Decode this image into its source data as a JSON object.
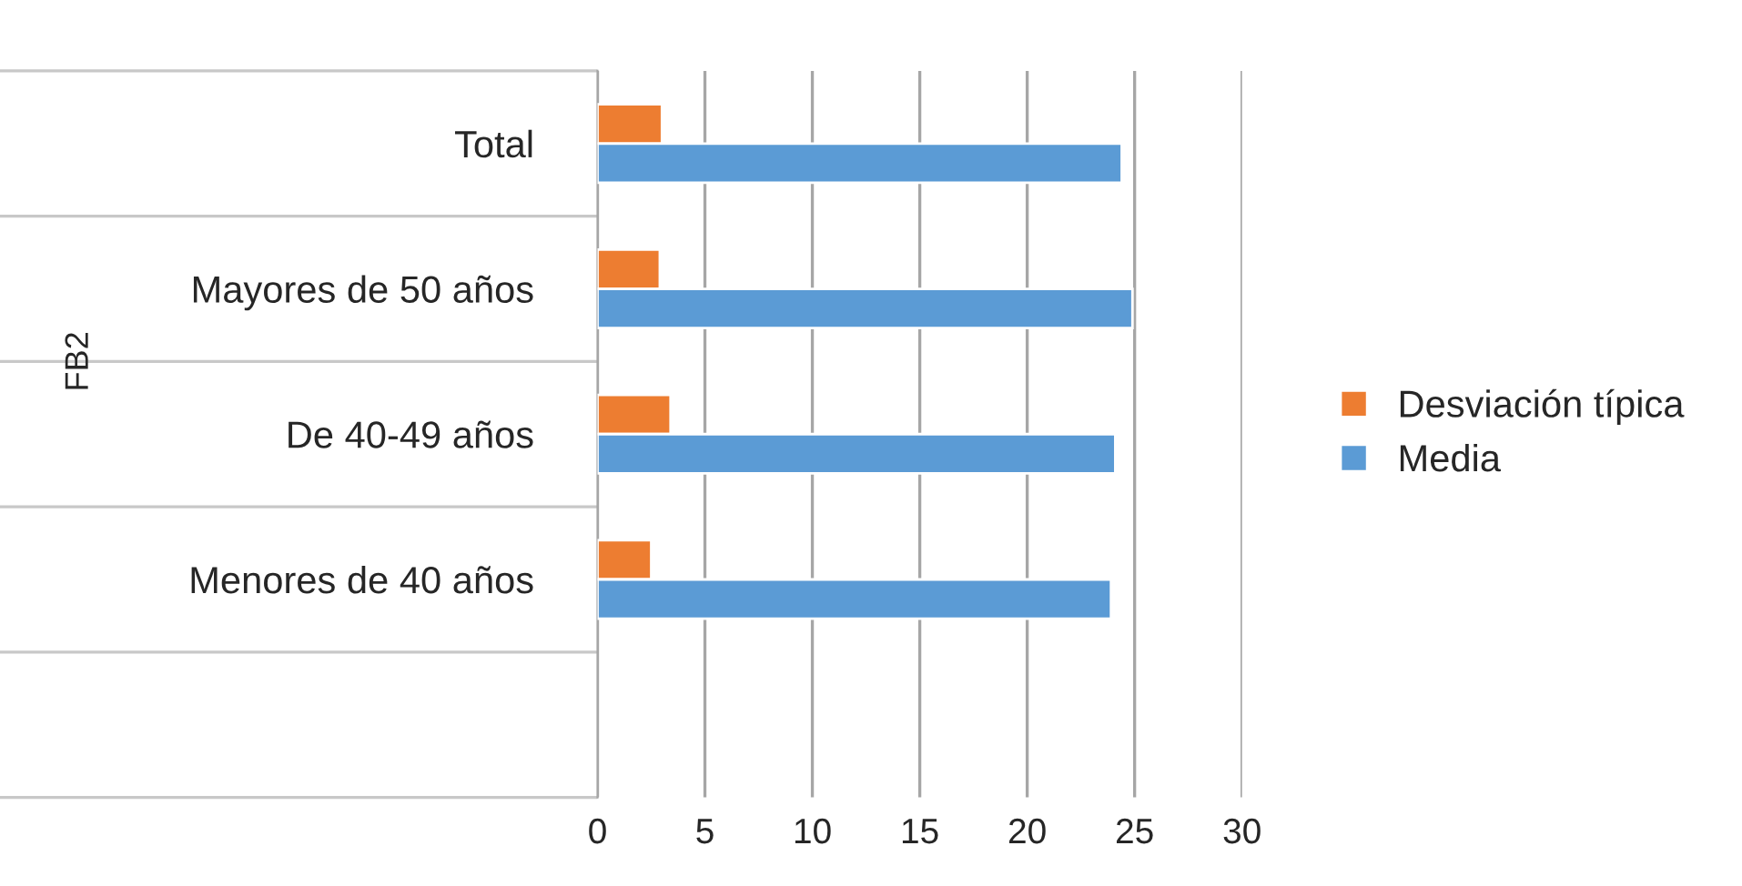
{
  "chart_data": {
    "type": "bar",
    "orientation": "horizontal",
    "ylabel": "FB2",
    "categories": [
      "Total",
      "Mayores de 50 años",
      "De 40-49 años",
      "Menores de 40 años",
      null
    ],
    "series": [
      {
        "name": "Desviación típica",
        "color": "#ed7d31",
        "values": [
          3.0,
          2.9,
          3.4,
          2.5,
          null
        ]
      },
      {
        "name": "Media",
        "color": "#5b9bd5",
        "values": [
          24.4,
          24.9,
          24.1,
          23.9,
          null
        ]
      }
    ],
    "xlim": [
      0,
      30
    ],
    "xticks": [
      0,
      5,
      10,
      15,
      20,
      25,
      30
    ],
    "grid": "x",
    "legend": "right"
  }
}
